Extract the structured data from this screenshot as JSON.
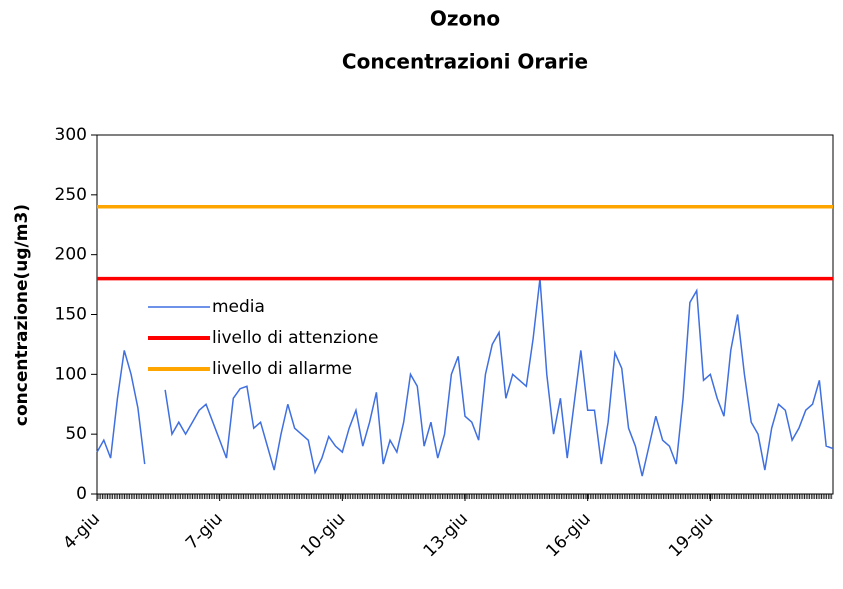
{
  "chart_data": {
    "type": "line",
    "title": "Ozono",
    "subtitle": "Concentrazioni Orarie",
    "y_label": "concentrazione(ug/m3)",
    "x": [
      0,
      4,
      8,
      12,
      16,
      20,
      24,
      28,
      32,
      36,
      40,
      44,
      48,
      52,
      56,
      60,
      64,
      68,
      72,
      76,
      80,
      84,
      88,
      92,
      96,
      100,
      104,
      108,
      112,
      116,
      120,
      124,
      128,
      132,
      136,
      140,
      144,
      148,
      152,
      156,
      160,
      164,
      168,
      172,
      176,
      180,
      184,
      188,
      192,
      196,
      200,
      204,
      208,
      212,
      216,
      220,
      224,
      228,
      232,
      236,
      240,
      244,
      248,
      252,
      256,
      260,
      264,
      268,
      272,
      276,
      280,
      284,
      288,
      292,
      296,
      300,
      304,
      308,
      312,
      316,
      320,
      324,
      328,
      332,
      336,
      340,
      344,
      348,
      352,
      356,
      360,
      364,
      368,
      372,
      376,
      380,
      384,
      388,
      392,
      396,
      400,
      404,
      408,
      412,
      416,
      420,
      424,
      428,
      432
    ],
    "series": [
      {
        "name": "media",
        "color": "#3f6fe0",
        "values": [
          35,
          45,
          30,
          80,
          120,
          100,
          72,
          25,
          null,
          null,
          87,
          50,
          60,
          50,
          60,
          70,
          75,
          60,
          45,
          30,
          80,
          88,
          90,
          55,
          60,
          40,
          20,
          50,
          75,
          55,
          50,
          45,
          18,
          30,
          48,
          40,
          35,
          55,
          70,
          40,
          60,
          85,
          25,
          45,
          35,
          60,
          100,
          90,
          40,
          60,
          30,
          50,
          100,
          115,
          65,
          60,
          45,
          100,
          125,
          135,
          80,
          100,
          95,
          90,
          130,
          180,
          100,
          50,
          80,
          30,
          75,
          120,
          70,
          70,
          25,
          60,
          118,
          105,
          55,
          40,
          15,
          40,
          65,
          45,
          40,
          25,
          80,
          160,
          170,
          95,
          100,
          80,
          65,
          120,
          150,
          100,
          60,
          50,
          20,
          55,
          75,
          70,
          45,
          55,
          70,
          75,
          95,
          40,
          38
        ]
      },
      {
        "name": "livello di attenzione",
        "color": "#ff0000",
        "x": [
          0,
          432
        ],
        "values": [
          180,
          180
        ]
      },
      {
        "name": "livello di allarme",
        "color": "#ffa500",
        "x": [
          0,
          432
        ],
        "values": [
          240,
          240
        ]
      }
    ],
    "xlim": [
      0,
      432
    ],
    "xticks": [
      {
        "value": 0,
        "label": "4-giu"
      },
      {
        "value": 72,
        "label": "7-giu"
      },
      {
        "value": 144,
        "label": "10-giu"
      },
      {
        "value": 216,
        "label": "13-giu"
      },
      {
        "value": 288,
        "label": "16-giu"
      },
      {
        "value": 360,
        "label": "19-giu"
      }
    ],
    "ylim": [
      0,
      300
    ],
    "yticks": [
      0,
      50,
      100,
      150,
      200,
      250,
      300
    ],
    "legend": "upper-left"
  }
}
